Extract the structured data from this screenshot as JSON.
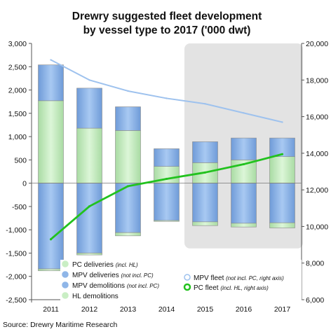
{
  "chart_data": {
    "type": "bar",
    "title_line1": "Drewry suggested fleet development",
    "title_line2": "by vessel type to 2017 ('000 dwt)",
    "source": "Source: Drewry Maritime Research",
    "categories": [
      "2011",
      "2012",
      "2013",
      "2014",
      "2015",
      "2016",
      "2017"
    ],
    "left_axis": {
      "ylim": [
        -2500,
        3000
      ],
      "ticks": [
        3000,
        2500,
        2000,
        1500,
        1000,
        500,
        0,
        -500,
        -1000,
        -1500,
        -2000,
        -2500
      ],
      "tick_labels": [
        "3,000",
        "2,500",
        "2,000",
        "1,500",
        "1,000",
        "500",
        "0",
        "-500",
        "-1,000",
        "-1,500",
        "-2,000",
        "-2,500"
      ]
    },
    "right_axis": {
      "ylim": [
        6000,
        20000
      ],
      "ticks": [
        20000,
        18000,
        16000,
        14000,
        12000,
        10000,
        8000,
        6000
      ],
      "tick_labels": [
        "20,000",
        "18,000",
        "16,000",
        "14,000",
        "12,000",
        "10,000",
        "8,000",
        "6,000"
      ]
    },
    "forecast_shading": {
      "from": "2015",
      "to": "2017",
      "color": "#e3e3e3"
    },
    "series": [
      {
        "name": "PC deliveries",
        "note": "(incl. HL)",
        "kind": "stacked-bar",
        "color": "#c9eec4",
        "values": [
          1770,
          1180,
          1130,
          360,
          440,
          500,
          570
        ]
      },
      {
        "name": "MPV deliveries",
        "note": "(not incl. PC)",
        "kind": "stacked-bar",
        "color": "#8fb6e8",
        "values": [
          770,
          860,
          510,
          380,
          450,
          470,
          400
        ]
      },
      {
        "name": "MPV demolitions",
        "note": "(not incl. PC)",
        "kind": "stacked-bar",
        "color": "#8fb6e8",
        "values": [
          -1840,
          -1500,
          -1060,
          -800,
          -830,
          -860,
          -850
        ]
      },
      {
        "name": "HL demolitions",
        "note": "",
        "kind": "stacked-bar",
        "color": "#c9eec4",
        "values": [
          -40,
          -40,
          -70,
          -20,
          -80,
          -80,
          -110
        ]
      },
      {
        "name": "MPV fleet",
        "note": "(not incl. PC, right axis)",
        "kind": "line",
        "axis": "right",
        "color": "#9ec2ee",
        "values": [
          19100,
          18000,
          17400,
          17000,
          16700,
          16200,
          15700
        ]
      },
      {
        "name": "PC fleet",
        "note": "(incl. HL, right axis)",
        "kind": "line",
        "axis": "right",
        "color": "#22c21e",
        "values": [
          9300,
          11100,
          12200,
          12600,
          12950,
          13400,
          13950
        ]
      }
    ]
  },
  "colors": {
    "pc": "#c9eec4",
    "mpv": "#8fb6e8",
    "mpv_fleet": "#9ec2ee",
    "pc_fleet": "#22c21e",
    "forecast_bg": "#e3e3e3"
  }
}
